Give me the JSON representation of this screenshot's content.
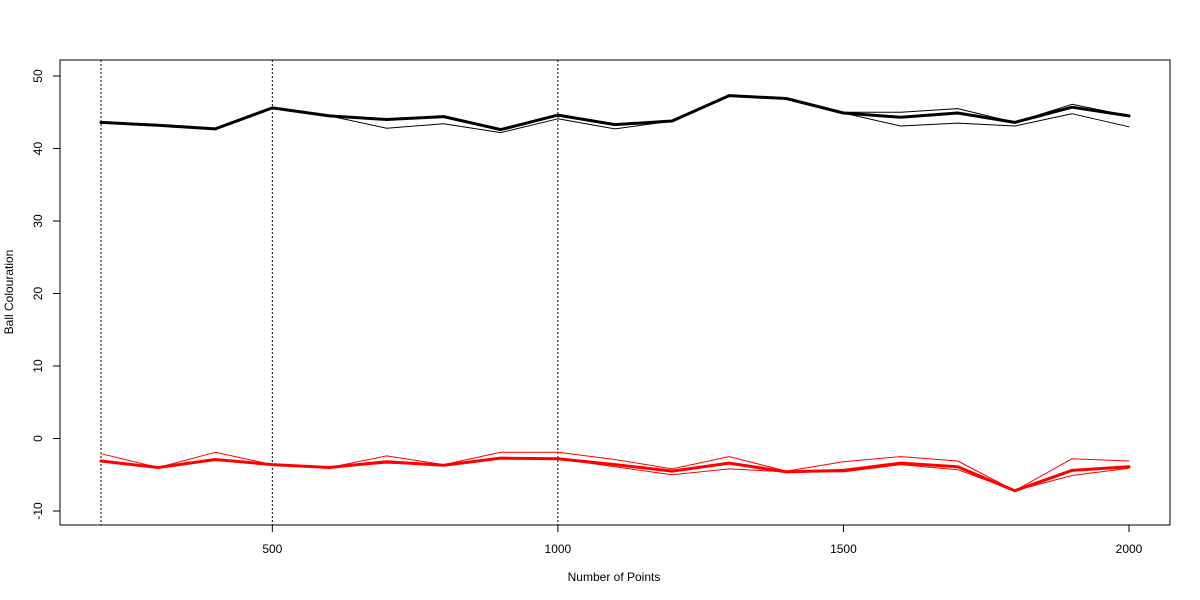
{
  "chart_data": {
    "type": "line",
    "title": "",
    "xlabel": "Number of Points",
    "ylabel": "Ball Colouration",
    "xlim": [
      200,
      2000
    ],
    "ylim": [
      -10,
      50
    ],
    "x_ticks": [
      500,
      1000,
      1500,
      2000
    ],
    "y_ticks": [
      -10,
      0,
      10,
      20,
      30,
      40,
      50
    ],
    "grid": false,
    "legend": "none",
    "reference_lines_x": [
      200,
      500,
      1000
    ],
    "x": [
      200,
      300,
      400,
      500,
      600,
      700,
      800,
      900,
      1000,
      1100,
      1200,
      1300,
      1400,
      1500,
      1600,
      1700,
      1800,
      1900,
      2000
    ],
    "series": [
      {
        "color": "#000000",
        "style": "thick",
        "values": [
          43.6,
          43.2,
          42.7,
          45.6,
          44.5,
          44.0,
          44.4,
          42.6,
          44.6,
          43.3,
          43.8,
          47.3,
          46.9,
          44.9,
          44.3,
          44.9,
          43.6,
          45.7,
          44.5
        ]
      },
      {
        "color": "#000000",
        "style": "thin",
        "values": [
          43.6,
          43.2,
          42.7,
          45.6,
          44.5,
          42.8,
          43.4,
          42.2,
          44.1,
          42.7,
          43.8,
          47.3,
          46.9,
          44.9,
          43.1,
          43.5,
          43.1,
          44.8,
          43.0
        ]
      },
      {
        "color": "#000000",
        "style": "thin",
        "values": [
          43.6,
          43.2,
          42.7,
          45.6,
          44.5,
          44.0,
          44.4,
          42.6,
          44.6,
          43.3,
          43.8,
          47.3,
          46.9,
          45.0,
          45.0,
          45.5,
          43.6,
          46.1,
          44.5
        ]
      },
      {
        "color": "#ff0000",
        "style": "thick",
        "values": [
          -3.1,
          -4.0,
          -2.9,
          -3.6,
          -4.0,
          -3.2,
          -3.7,
          -2.7,
          -2.8,
          -3.6,
          -4.5,
          -3.4,
          -4.6,
          -4.4,
          -3.4,
          -3.9,
          -7.2,
          -4.4,
          -3.9
        ]
      },
      {
        "color": "#ff0000",
        "style": "thin",
        "values": [
          -2.1,
          -4.0,
          -1.9,
          -3.6,
          -4.0,
          -2.4,
          -3.6,
          -1.9,
          -1.9,
          -2.9,
          -4.2,
          -2.5,
          -4.5,
          -3.2,
          -2.5,
          -3.1,
          -7.2,
          -2.8,
          -3.1
        ]
      },
      {
        "color": "#ff0000",
        "style": "thin",
        "values": [
          -3.1,
          -4.0,
          -2.9,
          -3.6,
          -4.0,
          -3.4,
          -3.7,
          -2.7,
          -2.8,
          -3.9,
          -5.0,
          -4.2,
          -4.6,
          -4.6,
          -3.6,
          -4.3,
          -7.2,
          -5.1,
          -4.1
        ]
      }
    ]
  }
}
